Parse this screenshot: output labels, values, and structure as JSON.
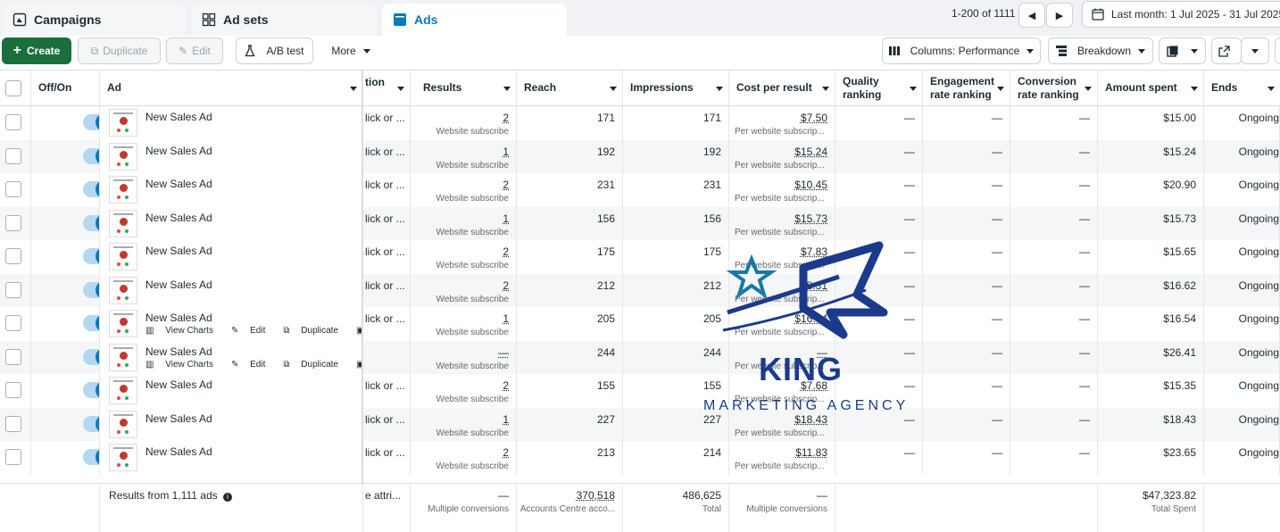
{
  "tabs": [
    {
      "label": "Campaigns",
      "icon": "campaigns-icon"
    },
    {
      "label": "Ad sets",
      "icon": "ad-sets-icon"
    },
    {
      "label": "Ads",
      "icon": "ads-icon"
    }
  ],
  "pager": {
    "range": "1-200 of 1111"
  },
  "date_range": "Last month: 1 Jul 2025 - 31 Jul 2025",
  "toolbar": {
    "create": "Create",
    "duplicate": "Duplicate",
    "edit": "Edit",
    "ab_test": "A/B test",
    "more": "More",
    "columns": "Columns: Performance",
    "breakdown": "Breakdown"
  },
  "headers": {
    "offon": "Off/On",
    "ad": "Ad",
    "attribution": "tion",
    "results": "Results",
    "reach": "Reach",
    "impressions": "Impressions",
    "cost_per_result": "Cost per result",
    "quality_ranking": "Quality ranking",
    "engagement_rate_ranking": "Engagement rate ranking",
    "conversion_rate_ranking": "Conversion rate ranking",
    "amount_spent": "Amount spent",
    "ends": "Ends"
  },
  "hover_actions": {
    "view_charts": "View Charts",
    "edit": "Edit",
    "duplicate": "Duplicate",
    "more": "•••"
  },
  "rows": [
    {
      "ad": "New Sales Ad",
      "attr": "lick or ...",
      "results": "2",
      "results_sub": "Website subscribe",
      "reach": "171",
      "impressions": "171",
      "cpr": "$7.50",
      "cpr_sub": "Per website subscrip...",
      "quality": "—",
      "engagement": "—",
      "conversion": "—",
      "spent": "$15.00",
      "ends": "Ongoing"
    },
    {
      "ad": "New Sales Ad",
      "attr": "lick or ...",
      "results": "1",
      "results_sub": "Website subscribe",
      "reach": "192",
      "impressions": "192",
      "cpr": "$15.24",
      "cpr_sub": "Per website subscrip...",
      "quality": "—",
      "engagement": "—",
      "conversion": "—",
      "spent": "$15.24",
      "ends": "Ongoing"
    },
    {
      "ad": "New Sales Ad",
      "attr": "lick or ...",
      "results": "2",
      "results_sub": "Website subscribe",
      "reach": "231",
      "impressions": "231",
      "cpr": "$10.45",
      "cpr_sub": "Per website subscrip...",
      "quality": "—",
      "engagement": "—",
      "conversion": "—",
      "spent": "$20.90",
      "ends": "Ongoing"
    },
    {
      "ad": "New Sales Ad",
      "attr": "lick or ...",
      "results": "1",
      "results_sub": "Website subscribe",
      "reach": "156",
      "impressions": "156",
      "cpr": "$15.73",
      "cpr_sub": "Per website subscrip...",
      "quality": "—",
      "engagement": "—",
      "conversion": "—",
      "spent": "$15.73",
      "ends": "Ongoing"
    },
    {
      "ad": "New Sales Ad",
      "attr": "lick or ...",
      "results": "2",
      "results_sub": "Website subscribe",
      "reach": "175",
      "impressions": "175",
      "cpr": "$7.83",
      "cpr_sub": "Per website subscrip...",
      "quality": "—",
      "engagement": "—",
      "conversion": "—",
      "spent": "$15.65",
      "ends": "Ongoing"
    },
    {
      "ad": "New Sales Ad",
      "attr": "lick or ...",
      "results": "2",
      "results_sub": "Website subscribe",
      "reach": "212",
      "impressions": "212",
      "cpr": "$8.31",
      "cpr_sub": "Per website subscrip...",
      "quality": "—",
      "engagement": "—",
      "conversion": "—",
      "spent": "$16.62",
      "ends": "Ongoing"
    },
    {
      "ad": "New Sales Ad",
      "attr": "lick or ...",
      "results": "1",
      "results_sub": "Website subscribe",
      "reach": "205",
      "impressions": "205",
      "cpr": "$16.54",
      "cpr_sub": "Per website subscrip...",
      "quality": "—",
      "engagement": "—",
      "conversion": "—",
      "spent": "$16.54",
      "ends": "Ongoing",
      "hover": true
    },
    {
      "ad": "New Sales Ad",
      "attr": "",
      "results": "—",
      "results_sub": "Website subscribe",
      "reach": "244",
      "impressions": "244",
      "cpr": "—",
      "cpr_sub": "Per website subscrip...",
      "quality": "—",
      "engagement": "—",
      "conversion": "—",
      "spent": "$26.41",
      "ends": "Ongoing",
      "hover": true
    },
    {
      "ad": "New Sales Ad",
      "attr": "lick or ...",
      "results": "2",
      "results_sub": "Website subscribe",
      "reach": "155",
      "impressions": "155",
      "cpr": "$7.68",
      "cpr_sub": "Per website subscrip...",
      "quality": "—",
      "engagement": "—",
      "conversion": "—",
      "spent": "$15.35",
      "ends": "Ongoing"
    },
    {
      "ad": "New Sales Ad",
      "attr": "lick or ...",
      "results": "1",
      "results_sub": "Website subscribe",
      "reach": "227",
      "impressions": "227",
      "cpr": "$18.43",
      "cpr_sub": "Per website subscrip...",
      "quality": "—",
      "engagement": "—",
      "conversion": "—",
      "spent": "$18.43",
      "ends": "Ongoing"
    },
    {
      "ad": "New Sales Ad",
      "attr": "lick or ...",
      "results": "2",
      "results_sub": "Website subscribe",
      "reach": "213",
      "impressions": "214",
      "cpr": "$11.83",
      "cpr_sub": "Per website subscrip...",
      "quality": "—",
      "engagement": "—",
      "conversion": "—",
      "spent": "$23.65",
      "ends": "Ongoing"
    }
  ],
  "footer": {
    "label": "Results from 1,111 ads",
    "attr": "e attri...",
    "results": "—",
    "results_sub": "Multiple conversions",
    "reach": "370,518",
    "reach_sub": "Accounts Centre acco...",
    "impressions": "486,625",
    "impressions_sub": "Total",
    "cpr": "—",
    "cpr_sub": "Multiple conversions",
    "spent": "$47,323.82",
    "spent_sub": "Total Spent"
  },
  "watermark": {
    "line1": "KING",
    "line2": "MARKETING AGENCY"
  },
  "colors": {
    "accent": "#0a78be",
    "create": "#1a6f3b",
    "watermark": "#1b3a8c"
  }
}
